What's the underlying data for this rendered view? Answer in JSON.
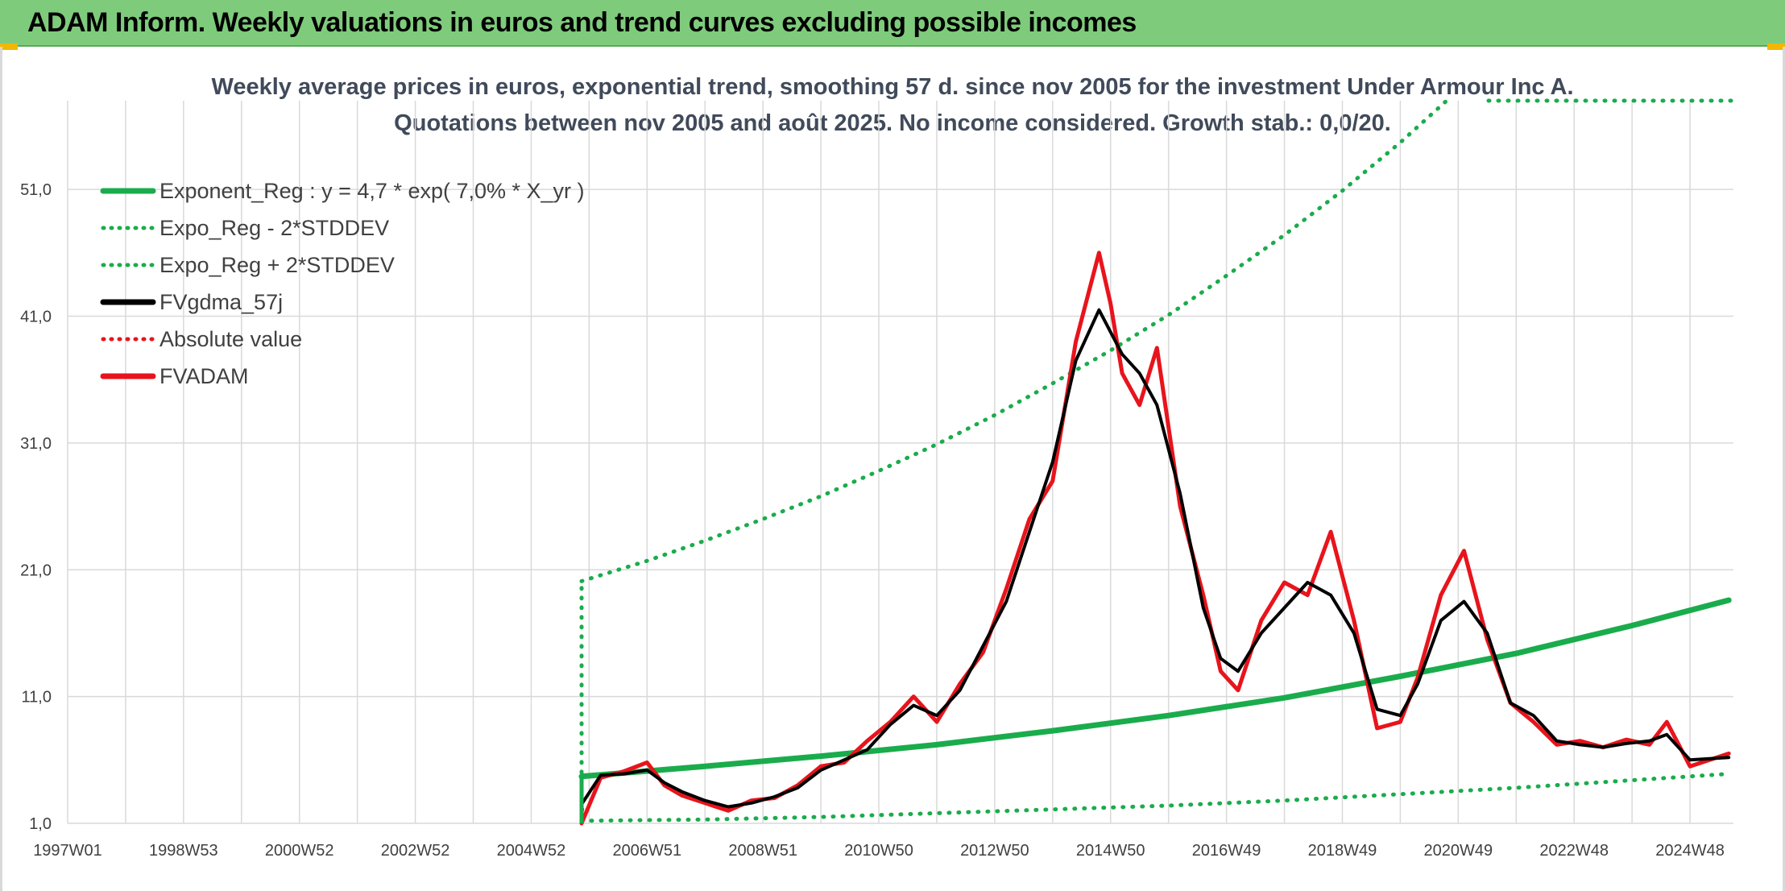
{
  "header": {
    "title": "ADAM Inform. Weekly valuations in euros and trend curves excluding possible incomes"
  },
  "colors": {
    "header_bg": "#7fcb7c",
    "regression_green": "#1aac4c",
    "band_green": "#1aac4c",
    "smoothed_black": "#000000",
    "price_red": "#e8141c",
    "grid": "#d9d9d9"
  },
  "chart_data": {
    "type": "line",
    "title": "Weekly average prices in euros, exponential trend, smoothing 57 d. since nov 2005 for the investment Under Armour Inc A.",
    "subtitle": "Quotations between nov 2005 and août 2025. No income considered. Growth stab.: 0,0/20.",
    "x_ticks": [
      "1997W01",
      "1998W53",
      "2000W52",
      "2002W52",
      "2004W52",
      "2006W51",
      "2008W51",
      "2010W50",
      "2012W50",
      "2014W50",
      "2016W49",
      "2018W49",
      "2020W49",
      "2022W48",
      "2024W48"
    ],
    "x_range": [
      1997.0,
      2025.75
    ],
    "y_ticks": [
      "1,0",
      "11,0",
      "21,0",
      "31,0",
      "41,0",
      "51,0"
    ],
    "ylim": [
      1,
      58
    ],
    "grid": true,
    "legend_position": "top-left",
    "legend": [
      {
        "label": "Exponent_Reg : y = 4,7 * exp( 7,0% *  X_yr )",
        "color": "#1aac4c",
        "style": "solid"
      },
      {
        "label": "Expo_Reg - 2*STDDEV",
        "color": "#1aac4c",
        "style": "dotted"
      },
      {
        "label": "Expo_Reg + 2*STDDEV",
        "color": "#1aac4c",
        "style": "dotted"
      },
      {
        "label": "FVgdma_57j",
        "color": "#000000",
        "style": "solid"
      },
      {
        "label": "Absolute value",
        "color": "#e8141c",
        "style": "dotted"
      },
      {
        "label": "FVADAM",
        "color": "#e8141c",
        "style": "solid"
      }
    ],
    "series": [
      {
        "name": "Exponent_Reg : y = 4,7 * exp( 7,0% *  X_yr )",
        "x": [
          2005.87,
          2008.0,
          2010.0,
          2012.0,
          2014.0,
          2016.0,
          2018.0,
          2020.0,
          2022.0,
          2024.0,
          2025.67
        ],
        "values": [
          4.7,
          5.5,
          6.3,
          7.2,
          8.3,
          9.5,
          10.9,
          12.6,
          14.4,
          16.6,
          18.6
        ]
      },
      {
        "name": "Expo_Reg - 2*STDDEV",
        "x": [
          2005.87,
          2008.0,
          2010.0,
          2012.0,
          2014.0,
          2016.0,
          2018.0,
          2020.0,
          2022.0,
          2024.0,
          2025.67
        ],
        "values": [
          1.2,
          1.3,
          1.5,
          1.8,
          2.1,
          2.4,
          2.8,
          3.3,
          3.8,
          4.4,
          4.9
        ]
      },
      {
        "name": "Expo_Reg + 2*STDDEV",
        "x": [
          2005.87,
          2007.0,
          2008.0,
          2009.0,
          2010.0,
          2011.0,
          2012.0,
          2013.0,
          2014.0,
          2015.0,
          2016.0,
          2017.0,
          2018.0,
          2019.0,
          2020.0,
          2020.8
        ],
        "values": [
          20.1,
          21.7,
          23.3,
          25.0,
          26.8,
          28.8,
          30.9,
          33.2,
          35.7,
          38.3,
          41.1,
          44.2,
          47.4,
          50.9,
          54.7,
          58.0
        ]
      },
      {
        "name": "FVgdma_57j",
        "x": [
          2005.87,
          2006.2,
          2006.6,
          2007.0,
          2007.3,
          2007.6,
          2008.0,
          2008.4,
          2008.8,
          2009.2,
          2009.6,
          2010.0,
          2010.4,
          2010.8,
          2011.2,
          2011.6,
          2012.0,
          2012.4,
          2012.8,
          2013.2,
          2013.6,
          2014.0,
          2014.4,
          2014.8,
          2015.2,
          2015.5,
          2015.8,
          2016.2,
          2016.6,
          2016.9,
          2017.2,
          2017.6,
          2018.0,
          2018.4,
          2018.8,
          2019.2,
          2019.6,
          2020.0,
          2020.3,
          2020.7,
          2021.1,
          2021.5,
          2021.9,
          2022.3,
          2022.7,
          2023.1,
          2023.5,
          2023.9,
          2024.3,
          2024.6,
          2025.0,
          2025.67
        ],
        "values": [
          2.5,
          4.8,
          4.9,
          5.2,
          4.2,
          3.5,
          2.8,
          2.3,
          2.6,
          3.1,
          3.8,
          5.2,
          6.0,
          6.8,
          8.8,
          10.3,
          9.5,
          11.5,
          15.0,
          18.5,
          24.0,
          29.5,
          37.5,
          41.5,
          38.0,
          36.5,
          34.0,
          27.0,
          18.0,
          14.0,
          13.0,
          16.0,
          18.0,
          20.0,
          19.0,
          16.0,
          10.0,
          9.5,
          12.0,
          17.0,
          18.5,
          16.0,
          10.5,
          9.5,
          7.5,
          7.2,
          7.0,
          7.3,
          7.5,
          8.0,
          6.0,
          6.2
        ]
      },
      {
        "name": "Absolute value",
        "x": [
          2005.87,
          2005.9
        ],
        "values": [
          1.0,
          2.5
        ]
      },
      {
        "name": "FVADAM",
        "x": [
          2005.87,
          2006.2,
          2006.6,
          2007.0,
          2007.3,
          2007.6,
          2008.0,
          2008.4,
          2008.8,
          2009.2,
          2009.6,
          2010.0,
          2010.4,
          2010.8,
          2011.2,
          2011.6,
          2012.0,
          2012.4,
          2012.8,
          2013.2,
          2013.6,
          2014.0,
          2014.4,
          2014.8,
          2015.0,
          2015.2,
          2015.5,
          2015.8,
          2016.2,
          2016.6,
          2016.9,
          2017.2,
          2017.6,
          2018.0,
          2018.4,
          2018.8,
          2019.2,
          2019.6,
          2020.0,
          2020.3,
          2020.7,
          2021.1,
          2021.5,
          2021.9,
          2022.3,
          2022.7,
          2023.1,
          2023.5,
          2023.9,
          2024.3,
          2024.6,
          2025.0,
          2025.67
        ],
        "values": [
          1.0,
          4.6,
          5.1,
          5.8,
          4.0,
          3.2,
          2.6,
          2.0,
          2.8,
          3.0,
          4.0,
          5.5,
          5.8,
          7.5,
          9.0,
          11.0,
          9.0,
          12.0,
          14.5,
          19.5,
          25.0,
          28.0,
          39.0,
          46.0,
          42.0,
          36.5,
          34.0,
          38.5,
          26.0,
          19.0,
          13.0,
          11.5,
          17.0,
          20.0,
          19.0,
          24.0,
          17.0,
          8.5,
          9.0,
          12.5,
          19.0,
          22.5,
          15.5,
          10.5,
          9.0,
          7.2,
          7.5,
          7.0,
          7.6,
          7.2,
          9.0,
          5.5,
          6.5
        ]
      }
    ]
  }
}
